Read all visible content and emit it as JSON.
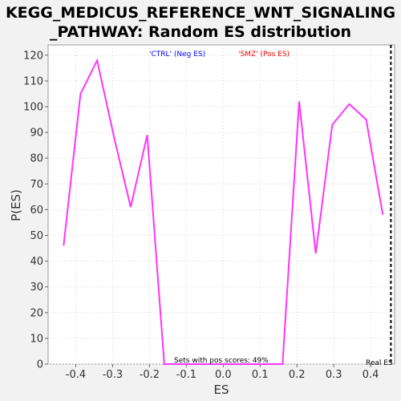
{
  "chart_data": {
    "type": "line",
    "title_line1": "KEGG_MEDICUS_REFERENCE_WNT_SIGNALING",
    "title_line2": "_PATHWAY: Random ES distribution",
    "xlabel": "ES",
    "ylabel": "P(ES)",
    "xlim": [
      -0.475,
      0.465
    ],
    "ylim": [
      0,
      124
    ],
    "xticks": [
      "-0.4",
      "-0.3",
      "-0.2",
      "-0.1",
      "0.0",
      "0.1",
      "0.2",
      "0.3",
      "0.4"
    ],
    "xtick_values": [
      -0.4,
      -0.3,
      -0.2,
      -0.1,
      0.0,
      0.1,
      0.2,
      0.3,
      0.4
    ],
    "yticks": [
      "0",
      "10",
      "20",
      "30",
      "40",
      "50",
      "60",
      "70",
      "80",
      "90",
      "100",
      "110",
      "120"
    ],
    "ytick_values": [
      0,
      10,
      20,
      30,
      40,
      50,
      60,
      70,
      80,
      90,
      100,
      110,
      120
    ],
    "grid": true,
    "series": [
      {
        "color": "#ff33ff",
        "x": [
          -0.433,
          -0.387,
          -0.342,
          -0.296,
          -0.251,
          -0.206,
          -0.16,
          0.161,
          0.206,
          0.251,
          0.296,
          0.342,
          0.388,
          0.433
        ],
        "y": [
          46,
          105,
          118,
          88,
          61,
          89,
          0,
          0,
          102,
          43,
          93,
          101,
          95,
          58
        ]
      }
    ],
    "real_es": 0.455,
    "legend_neg": "'CTRL' (Neg ES)",
    "legend_pos": "'SMZ' (Pos ES)",
    "legend_neg_color": "#0000ff",
    "legend_pos_color": "#ff0000",
    "sets_note": "Sets with pos scores: 49%",
    "real_es_label": "Real ES"
  }
}
